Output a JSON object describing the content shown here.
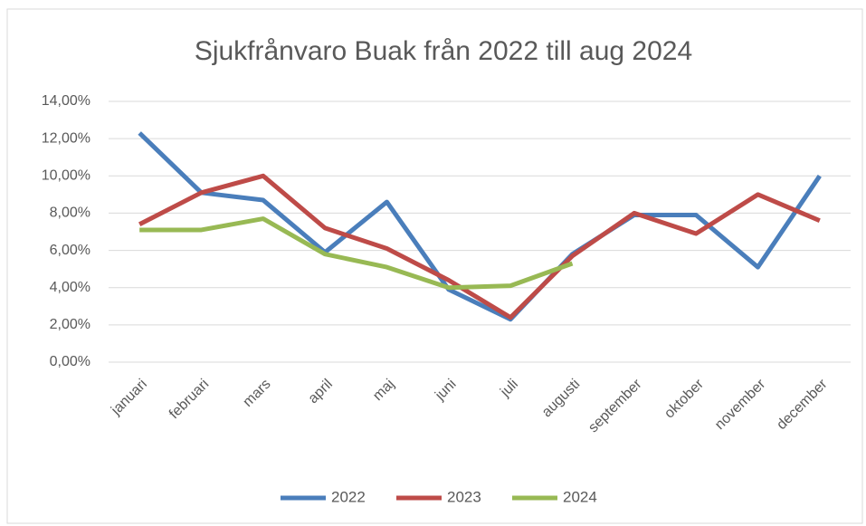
{
  "chart_data": {
    "type": "line",
    "title": "Sjukfrånvaro Buak från 2022 till aug 2024",
    "categories": [
      "januari",
      "februari",
      "mars",
      "april",
      "maj",
      "juni",
      "juli",
      "augusti",
      "september",
      "oktober",
      "november",
      "december"
    ],
    "series": [
      {
        "name": "2022",
        "color": "#4a7ebb",
        "values": [
          12.3,
          9.1,
          8.7,
          5.9,
          8.6,
          3.9,
          2.3,
          5.8,
          7.9,
          7.9,
          5.1,
          10.0
        ]
      },
      {
        "name": "2023",
        "color": "#be4b48",
        "values": [
          7.4,
          9.1,
          10.0,
          7.2,
          6.1,
          4.4,
          2.4,
          5.7,
          8.0,
          6.9,
          9.0,
          7.6
        ]
      },
      {
        "name": "2024",
        "color": "#98b954",
        "values": [
          7.1,
          7.1,
          7.7,
          5.8,
          5.1,
          4.0,
          4.1,
          5.3,
          null,
          null,
          null,
          null
        ]
      }
    ],
    "ylim": [
      0,
      14
    ],
    "yticks": [
      {
        "value": 0,
        "label": "0,00%"
      },
      {
        "value": 2,
        "label": "2,00%"
      },
      {
        "value": 4,
        "label": "4,00%"
      },
      {
        "value": 6,
        "label": "6,00%"
      },
      {
        "value": 8,
        "label": "8,00%"
      },
      {
        "value": 10,
        "label": "10,00%"
      },
      {
        "value": 12,
        "label": "12,00%"
      },
      {
        "value": 14,
        "label": "14,00%"
      }
    ],
    "grid": true,
    "legend": "bottom"
  }
}
